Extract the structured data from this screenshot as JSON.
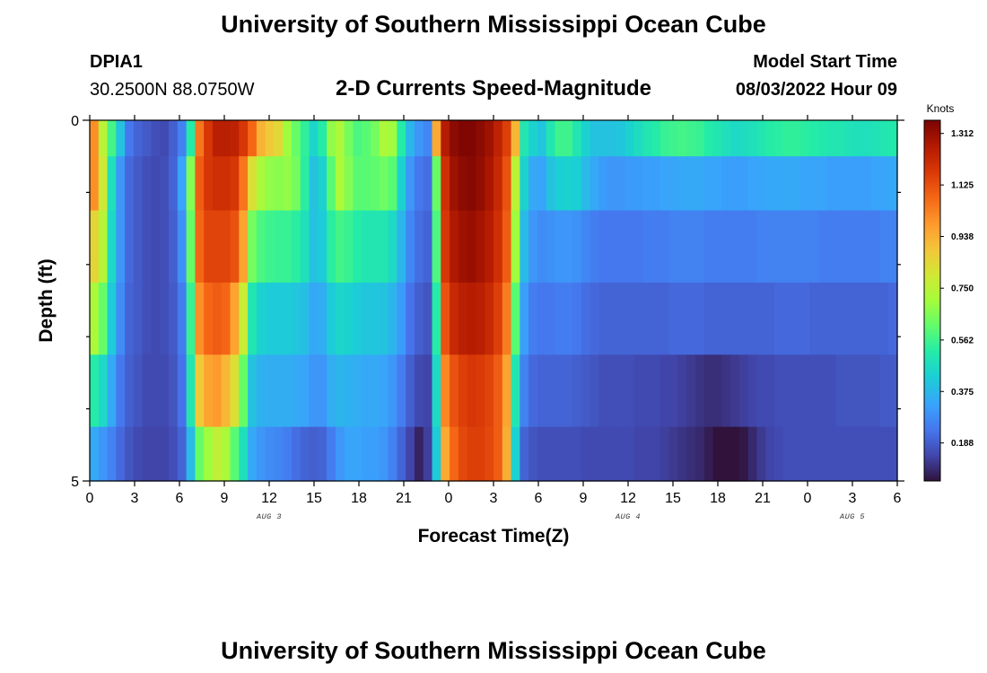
{
  "chart_data": {
    "type": "heatmap",
    "title": "University of Southern Mississippi Ocean Cube",
    "station": "DPIA1",
    "location": "30.2500N  88.0750W",
    "subtitle": "2-D Currents Speed-Magnitude",
    "model_start_label": "Model Start Time",
    "model_start": "08/03/2022 Hour 09",
    "xlabel": "Forecast Time(Z)",
    "ylabel": "Depth (ft)",
    "x_ticks": [
      "0",
      "3",
      "6",
      "9",
      "12",
      "15",
      "18",
      "21",
      "0",
      "3",
      "6",
      "9",
      "12",
      "15",
      "18",
      "21",
      "0",
      "3",
      "6"
    ],
    "y_ticks": [
      "0",
      "5"
    ],
    "ylim": [
      0,
      5
    ],
    "day_labels": [
      {
        "text": "AUG 3",
        "hour": 12
      },
      {
        "text": "AUG 4",
        "hour": 36
      },
      {
        "text": "AUG 5",
        "hour": 51
      }
    ],
    "colorbar": {
      "unit": "Knots",
      "ticks": [
        "1.312",
        "1.125",
        "0.938",
        "0.750",
        "0.562",
        "0.375",
        "0.188"
      ],
      "range": [
        0.05,
        1.36
      ]
    },
    "x_hours_range": [
      0,
      54
    ],
    "depth_layers_ft": [
      0.25,
      0.75,
      1.75,
      2.75,
      3.75,
      4.75
    ],
    "speed_rows": [
      [
        1.0,
        0.75,
        0.57,
        0.4,
        0.24,
        0.2,
        0.18,
        0.16,
        0.15,
        0.19,
        0.26,
        0.52,
        1.05,
        1.18,
        1.25,
        1.25,
        1.24,
        1.18,
        1.08,
        0.93,
        0.88,
        0.84,
        0.7,
        0.62,
        0.54,
        0.45,
        0.52,
        0.68,
        0.72,
        0.64,
        0.58,
        0.6,
        0.64,
        0.72,
        0.7,
        0.52,
        0.37,
        0.3,
        0.27,
        0.95,
        1.26,
        1.33,
        1.35,
        1.35,
        1.33,
        1.3,
        1.24,
        1.16,
        0.92,
        0.5,
        0.44,
        0.41,
        0.5,
        0.56,
        0.56,
        0.5,
        0.44,
        0.4,
        0.4,
        0.4,
        0.41,
        0.44,
        0.47,
        0.5,
        0.52,
        0.55,
        0.56,
        0.57,
        0.56,
        0.55,
        0.52,
        0.5,
        0.48,
        0.46,
        0.47,
        0.48,
        0.5,
        0.52,
        0.53,
        0.54,
        0.54,
        0.53,
        0.52,
        0.51,
        0.5,
        0.5,
        0.49,
        0.48,
        0.48,
        0.49,
        0.5,
        0.51
      ],
      [
        1.0,
        0.79,
        0.48,
        0.3,
        0.21,
        0.18,
        0.16,
        0.15,
        0.16,
        0.2,
        0.33,
        0.66,
        1.1,
        1.18,
        1.2,
        1.2,
        1.18,
        1.05,
        0.82,
        0.72,
        0.68,
        0.67,
        0.68,
        0.64,
        0.53,
        0.4,
        0.44,
        0.6,
        0.72,
        0.66,
        0.6,
        0.6,
        0.61,
        0.63,
        0.6,
        0.44,
        0.3,
        0.24,
        0.22,
        0.62,
        1.2,
        1.3,
        1.33,
        1.34,
        1.32,
        1.28,
        1.22,
        1.12,
        0.75,
        0.44,
        0.34,
        0.33,
        0.4,
        0.43,
        0.44,
        0.43,
        0.38,
        0.34,
        0.31,
        0.3,
        0.3,
        0.31,
        0.31,
        0.32,
        0.32,
        0.33,
        0.33,
        0.34,
        0.34,
        0.34,
        0.33,
        0.33,
        0.32,
        0.32,
        0.32,
        0.33,
        0.33,
        0.34,
        0.34,
        0.34,
        0.34,
        0.33,
        0.33,
        0.33,
        0.32,
        0.32,
        0.32,
        0.32,
        0.32,
        0.33,
        0.33,
        0.34
      ],
      [
        0.85,
        0.74,
        0.46,
        0.3,
        0.21,
        0.18,
        0.16,
        0.15,
        0.16,
        0.19,
        0.29,
        0.62,
        1.08,
        1.15,
        1.15,
        1.15,
        1.12,
        0.96,
        0.64,
        0.58,
        0.56,
        0.55,
        0.55,
        0.53,
        0.48,
        0.4,
        0.42,
        0.53,
        0.57,
        0.55,
        0.52,
        0.5,
        0.5,
        0.5,
        0.46,
        0.37,
        0.27,
        0.22,
        0.2,
        0.58,
        1.18,
        1.27,
        1.3,
        1.31,
        1.29,
        1.26,
        1.2,
        1.1,
        0.7,
        0.38,
        0.3,
        0.28,
        0.29,
        0.3,
        0.3,
        0.29,
        0.27,
        0.25,
        0.24,
        0.24,
        0.24,
        0.24,
        0.24,
        0.25,
        0.25,
        0.25,
        0.26,
        0.26,
        0.26,
        0.26,
        0.25,
        0.25,
        0.25,
        0.25,
        0.25,
        0.25,
        0.26,
        0.26,
        0.26,
        0.26,
        0.26,
        0.26,
        0.26,
        0.25,
        0.25,
        0.25,
        0.25,
        0.25,
        0.25,
        0.25,
        0.26,
        0.26
      ],
      [
        0.72,
        0.62,
        0.42,
        0.28,
        0.2,
        0.18,
        0.16,
        0.15,
        0.16,
        0.18,
        0.25,
        0.55,
        1.0,
        1.08,
        1.1,
        1.08,
        0.96,
        0.78,
        0.5,
        0.44,
        0.42,
        0.42,
        0.42,
        0.41,
        0.39,
        0.34,
        0.35,
        0.42,
        0.45,
        0.44,
        0.42,
        0.41,
        0.41,
        0.4,
        0.37,
        0.31,
        0.23,
        0.19,
        0.17,
        0.52,
        1.12,
        1.22,
        1.25,
        1.26,
        1.25,
        1.22,
        1.16,
        1.04,
        0.6,
        0.32,
        0.25,
        0.24,
        0.24,
        0.25,
        0.25,
        0.24,
        0.22,
        0.21,
        0.2,
        0.2,
        0.2,
        0.2,
        0.2,
        0.2,
        0.2,
        0.2,
        0.21,
        0.21,
        0.21,
        0.21,
        0.2,
        0.2,
        0.2,
        0.2,
        0.2,
        0.2,
        0.2,
        0.2,
        0.21,
        0.21,
        0.21,
        0.21,
        0.2,
        0.2,
        0.2,
        0.2,
        0.2,
        0.2,
        0.2,
        0.2,
        0.2,
        0.21
      ],
      [
        0.52,
        0.46,
        0.34,
        0.24,
        0.19,
        0.17,
        0.15,
        0.15,
        0.15,
        0.17,
        0.23,
        0.5,
        0.88,
        0.96,
        0.98,
        0.92,
        0.82,
        0.62,
        0.4,
        0.36,
        0.35,
        0.35,
        0.35,
        0.34,
        0.33,
        0.3,
        0.3,
        0.35,
        0.37,
        0.36,
        0.35,
        0.34,
        0.34,
        0.33,
        0.3,
        0.25,
        0.19,
        0.15,
        0.14,
        0.46,
        1.02,
        1.12,
        1.16,
        1.18,
        1.17,
        1.15,
        1.1,
        0.96,
        0.5,
        0.26,
        0.21,
        0.2,
        0.2,
        0.2,
        0.2,
        0.19,
        0.18,
        0.17,
        0.16,
        0.16,
        0.16,
        0.16,
        0.15,
        0.15,
        0.15,
        0.14,
        0.14,
        0.13,
        0.12,
        0.11,
        0.1,
        0.1,
        0.11,
        0.12,
        0.13,
        0.14,
        0.15,
        0.15,
        0.16,
        0.16,
        0.16,
        0.16,
        0.16,
        0.16,
        0.16,
        0.17,
        0.17,
        0.17,
        0.17,
        0.17,
        0.18,
        0.18
      ],
      [
        0.34,
        0.3,
        0.26,
        0.21,
        0.17,
        0.15,
        0.14,
        0.14,
        0.14,
        0.16,
        0.2,
        0.38,
        0.62,
        0.7,
        0.76,
        0.72,
        0.6,
        0.48,
        0.34,
        0.3,
        0.28,
        0.27,
        0.25,
        0.22,
        0.2,
        0.19,
        0.2,
        0.25,
        0.3,
        0.33,
        0.33,
        0.32,
        0.32,
        0.3,
        0.26,
        0.2,
        0.14,
        0.08,
        0.13,
        0.42,
        0.95,
        1.08,
        1.14,
        1.16,
        1.16,
        1.14,
        1.1,
        0.94,
        0.44,
        0.2,
        0.17,
        0.16,
        0.16,
        0.16,
        0.16,
        0.16,
        0.15,
        0.15,
        0.15,
        0.15,
        0.15,
        0.15,
        0.14,
        0.14,
        0.14,
        0.13,
        0.12,
        0.11,
        0.1,
        0.09,
        0.07,
        0.05,
        0.04,
        0.04,
        0.06,
        0.09,
        0.12,
        0.14,
        0.15,
        0.16,
        0.16,
        0.16,
        0.16,
        0.16,
        0.16,
        0.16,
        0.16,
        0.16,
        0.16,
        0.16,
        0.16,
        0.16
      ]
    ]
  },
  "footer_title": "University of Southern Mississippi Ocean Cube"
}
